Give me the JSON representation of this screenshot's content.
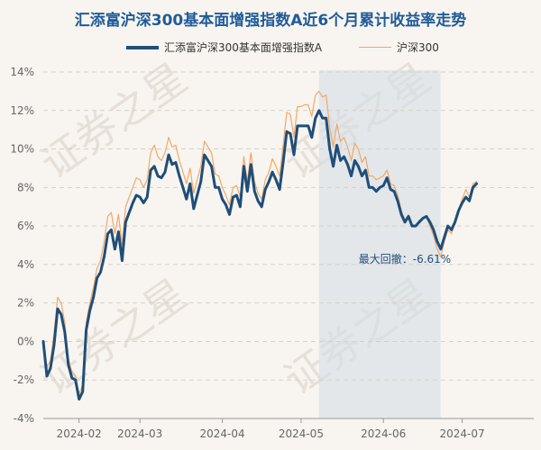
{
  "chart_data": {
    "type": "line",
    "title": "汇添富沪深300基本面增强指数A近6个月累计收益率走势",
    "watermark": "证券之星",
    "y_unit": "%",
    "ylim": [
      -4,
      14
    ],
    "y_ticks": [
      -4,
      -2,
      0,
      2,
      4,
      6,
      8,
      10,
      12,
      14
    ],
    "y_tick_labels": [
      "-4%",
      "-2%",
      "0%",
      "2%",
      "4%",
      "6%",
      "8%",
      "10%",
      "12%",
      "14%"
    ],
    "x_index_range": [
      0,
      137
    ],
    "x_ticks": [
      {
        "index": 10,
        "label": "2024-02"
      },
      {
        "index": 27,
        "label": "2024-03"
      },
      {
        "index": 50,
        "label": "2024-04"
      },
      {
        "index": 72,
        "label": "2024-05"
      },
      {
        "index": 95,
        "label": "2024-06"
      },
      {
        "index": 117,
        "label": "2024-07"
      }
    ],
    "series": [
      {
        "name": "汇添富沪深300基本面增强指数A",
        "color": "#1f4e79",
        "values": [
          0,
          -1.8,
          -1.4,
          -0.2,
          1.7,
          1.4,
          0.5,
          -1.2,
          -1.9,
          -2.0,
          -3.0,
          -2.6,
          0.6,
          1.6,
          2.3,
          3.3,
          3.6,
          4.4,
          5.6,
          5.8,
          4.8,
          5.7,
          4.2,
          6.2,
          6.7,
          7.2,
          7.6,
          7.5,
          7.2,
          7.5,
          8.9,
          9.1,
          8.6,
          8.5,
          8.8,
          9.7,
          9.2,
          9.3,
          8.6,
          8.0,
          7.4,
          8.2,
          6.9,
          7.6,
          8.3,
          9.7,
          9.4,
          9.1,
          8.0,
          8.0,
          7.4,
          7.1,
          6.6,
          7.5,
          7.6,
          7.0,
          9.1,
          7.8,
          9.2,
          7.8,
          7.3,
          7.0,
          7.9,
          8.3,
          8.8,
          8.4,
          7.9,
          9.3,
          10.9,
          10.8,
          9.7,
          11.2,
          11.2,
          11.2,
          11.2,
          10.6,
          11.6,
          12.0,
          11.6,
          11.6,
          10.0,
          9.1,
          10.2,
          9.4,
          9.6,
          9.2,
          8.6,
          9.4,
          9.1,
          8.6,
          8.9,
          8.0,
          8.0,
          7.8,
          8.0,
          8.1,
          8.5,
          7.9,
          7.8,
          7.3,
          6.6,
          6.2,
          6.5,
          6.0,
          6.0,
          6.2,
          6.4,
          6.5,
          6.2,
          5.8,
          5.2,
          4.8,
          5.4,
          6.0,
          5.8,
          6.2,
          6.8,
          7.2,
          7.5,
          7.3,
          8.0,
          8.2
        ]
      },
      {
        "name": "沪深300",
        "color": "#f0a86a",
        "values": [
          -0.3,
          -1.3,
          -1.0,
          0.4,
          2.3,
          2.0,
          1.0,
          -0.9,
          -1.6,
          -1.8,
          -2.7,
          -2.3,
          1.0,
          2.0,
          2.8,
          3.8,
          4.2,
          5.2,
          6.5,
          6.7,
          5.6,
          6.6,
          5.0,
          7.0,
          7.5,
          8.0,
          8.5,
          8.4,
          8.0,
          8.4,
          9.8,
          10.2,
          9.6,
          9.4,
          9.8,
          10.6,
          10.1,
          10.2,
          9.4,
          8.8,
          8.2,
          9.0,
          7.7,
          8.4,
          9.1,
          10.4,
          10.1,
          9.8,
          8.7,
          8.6,
          8.0,
          7.6,
          7.1,
          8.0,
          8.1,
          7.5,
          9.6,
          8.3,
          9.8,
          8.3,
          7.7,
          7.4,
          8.4,
          8.8,
          9.5,
          9.1,
          8.6,
          10.2,
          11.9,
          11.8,
          10.6,
          12.2,
          12.2,
          12.3,
          12.3,
          11.7,
          12.8,
          13.0,
          12.7,
          12.8,
          11.1,
          10.1,
          11.3,
          10.4,
          10.6,
          10.1,
          9.4,
          10.3,
          10.0,
          9.3,
          9.6,
          8.6,
          8.6,
          8.4,
          8.5,
          8.6,
          8.9,
          8.2,
          8.1,
          7.6,
          6.8,
          6.3,
          6.6,
          6.1,
          6.0,
          6.3,
          6.4,
          6.5,
          6.0,
          5.5,
          4.8,
          4.4,
          5.2,
          5.8,
          5.6,
          6.2,
          6.8,
          7.4,
          7.9,
          7.5,
          8.2,
          8.3
        ]
      }
    ],
    "max_drawdown": {
      "label": "最大回撤：-6.61%",
      "start_index": 77,
      "end_index": 111
    }
  }
}
